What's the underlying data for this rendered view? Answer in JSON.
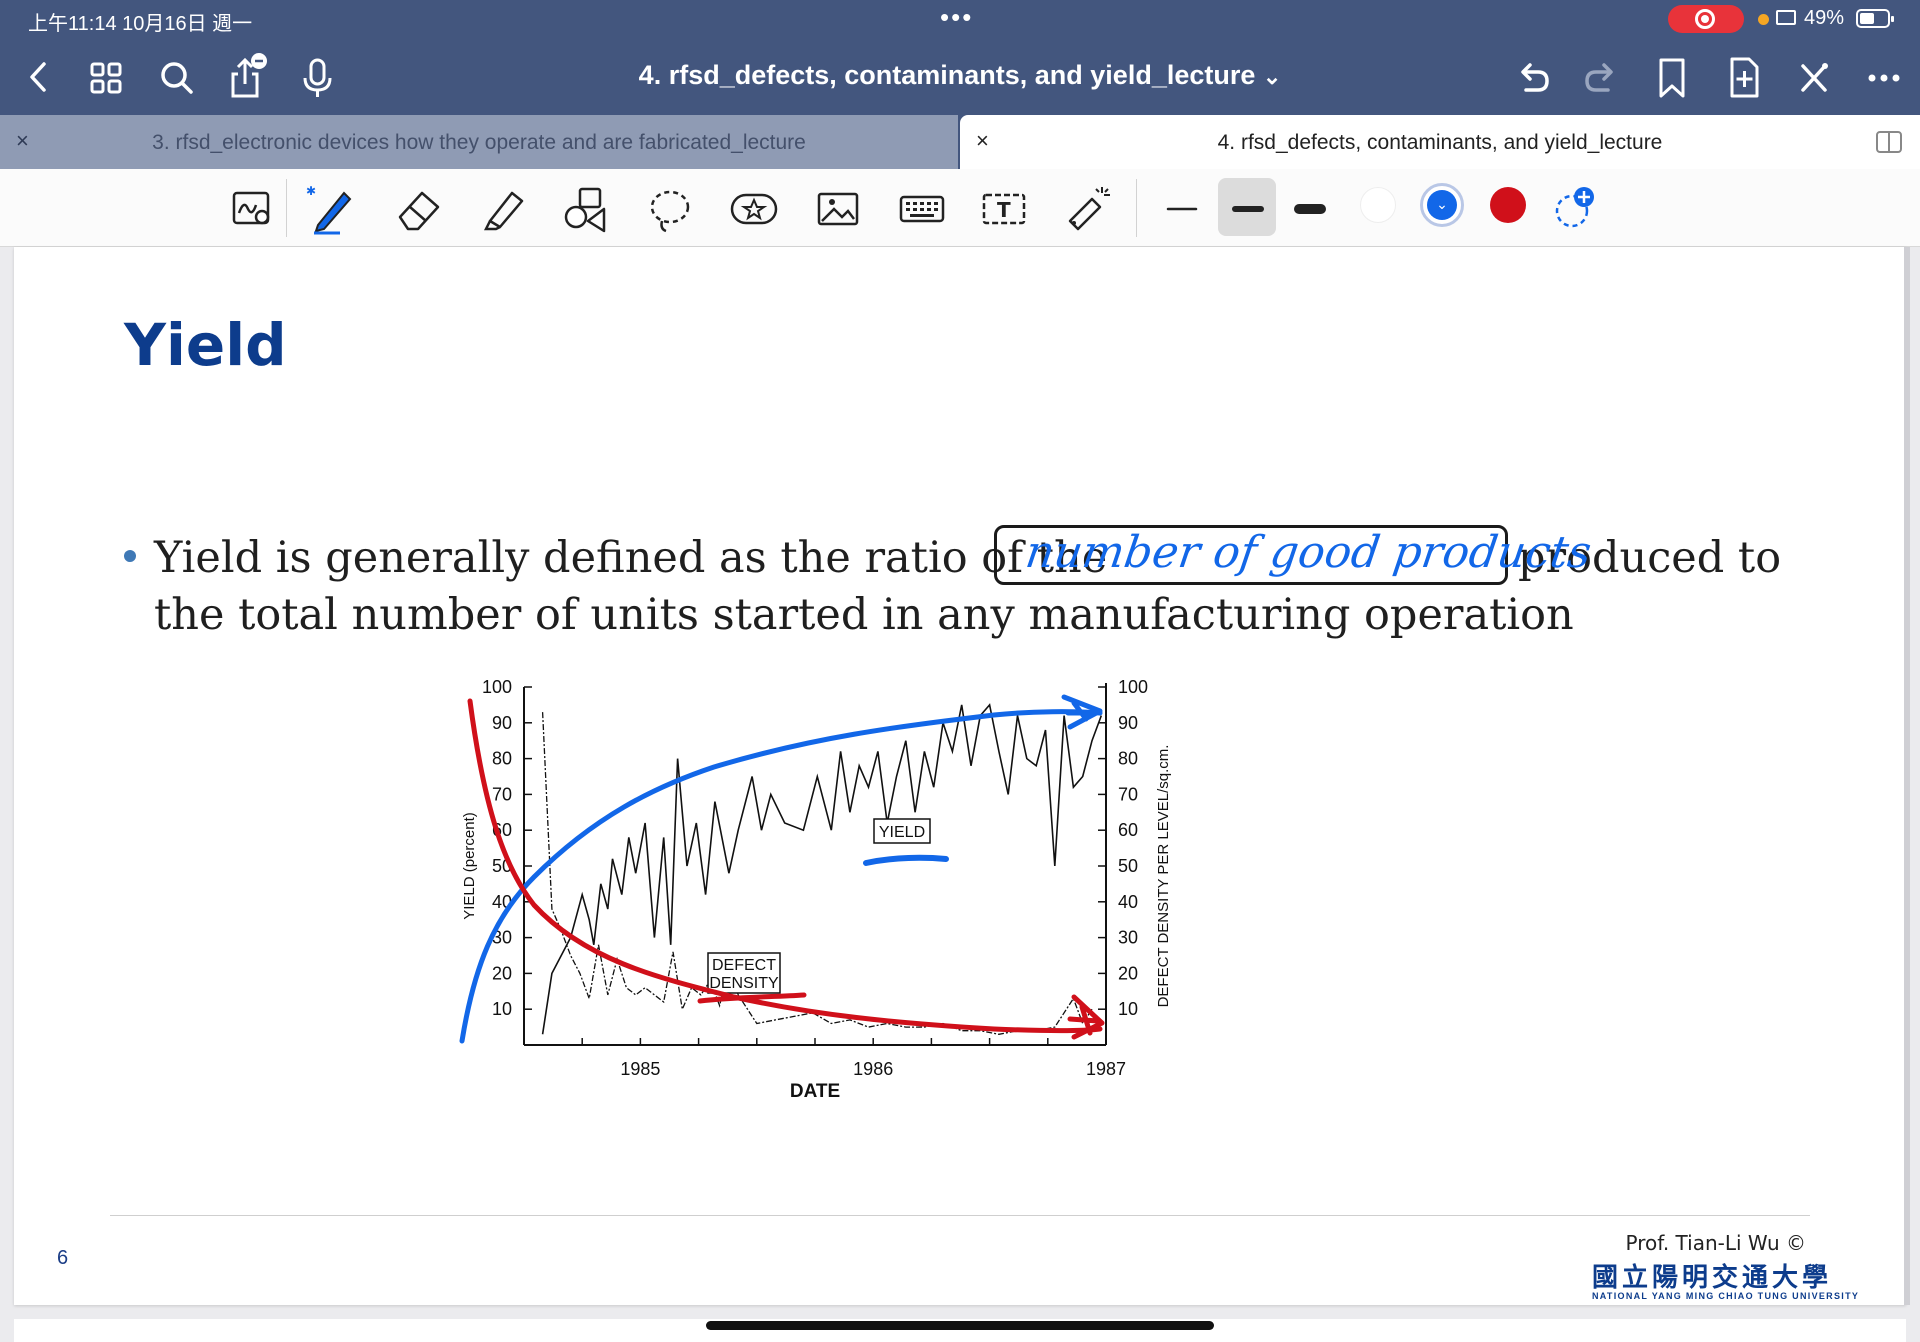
{
  "status_bar": {
    "time": "上午11:14   10月16日 週一",
    "dots": "•••",
    "battery": "49%"
  },
  "nav": {
    "title": "4. rfsd_defects, contaminants, and yield_lecture",
    "title_chevron": "⌄"
  },
  "tabs": [
    {
      "label": "3. rfsd_electronic devices how they operate and are fabricated_lecture",
      "close": "×"
    },
    {
      "label": "4. rfsd_defects, contaminants, and yield_lecture",
      "close": "×"
    }
  ],
  "tools": [
    "zoom-lasso",
    "pen",
    "eraser",
    "highlighter",
    "shapes",
    "lasso",
    "sticker",
    "image",
    "keyboard",
    "text",
    "laser-pointer"
  ],
  "colors": {
    "nav_bg": "#43567e",
    "accent_blue": "#1267e8",
    "ink_red": "#d0101a",
    "title_blue": "#0d3c8c"
  },
  "slide": {
    "title": "Yield",
    "bullet_line1_a": "Yield is generally defined as the ratio of the",
    "handwriting": "number of good products",
    "bullet_line1_b": "produced to",
    "bullet_line2": "the total number of units started in any manufacturing operation",
    "page_number": "6",
    "author": "Prof. Tian-Li Wu ©",
    "university_cn": "國立陽明交通大學",
    "university_en": "NATIONAL YANG MING CHIAO TUNG UNIVERSITY"
  },
  "chart_data": {
    "type": "line",
    "xlabel": "DATE",
    "ylabel_left": "YIELD (percent)",
    "ylabel_right": "DEFECT DENSITY PER LEVEL/sq.cm.",
    "x_ticks": [
      "1985",
      "1986",
      "1987"
    ],
    "y_ticks": [
      10,
      20,
      30,
      40,
      50,
      60,
      70,
      80,
      90,
      100
    ],
    "ylim": [
      0,
      100
    ],
    "xlim": [
      1984.5,
      1987.0
    ],
    "annotations": [
      "YIELD",
      "DEFECT DENSITY"
    ],
    "series": [
      {
        "name": "YIELD",
        "x": [
          1984.58,
          1984.62,
          1984.7,
          1984.75,
          1984.78,
          1984.8,
          1984.83,
          1984.86,
          1984.88,
          1984.92,
          1984.95,
          1984.98,
          1985.02,
          1985.06,
          1985.1,
          1985.13,
          1985.16,
          1985.2,
          1985.24,
          1985.28,
          1985.32,
          1985.38,
          1985.42,
          1985.48,
          1985.52,
          1985.56,
          1985.62,
          1985.7,
          1985.76,
          1985.82,
          1985.86,
          1985.9,
          1985.94,
          1985.98,
          1986.02,
          1986.06,
          1986.1,
          1986.14,
          1986.18,
          1986.22,
          1986.26,
          1986.3,
          1986.34,
          1986.38,
          1986.42,
          1986.46,
          1986.5,
          1986.54,
          1986.58,
          1986.62,
          1986.66,
          1986.7,
          1986.74,
          1986.78,
          1986.82,
          1986.86,
          1986.9,
          1986.94,
          1986.98
        ],
        "y": [
          3,
          20,
          30,
          42,
          35,
          28,
          45,
          38,
          52,
          42,
          58,
          48,
          62,
          30,
          58,
          28,
          80,
          50,
          62,
          42,
          68,
          48,
          60,
          75,
          60,
          70,
          62,
          60,
          75,
          60,
          82,
          65,
          78,
          72,
          82,
          62,
          75,
          85,
          65,
          82,
          72,
          90,
          82,
          95,
          78,
          92,
          95,
          82,
          70,
          92,
          80,
          78,
          88,
          50,
          92,
          72,
          75,
          85,
          92
        ]
      },
      {
        "name": "DEFECT DENSITY",
        "x": [
          1984.58,
          1984.62,
          1984.66,
          1984.7,
          1984.74,
          1984.78,
          1984.82,
          1984.86,
          1984.9,
          1984.94,
          1984.98,
          1985.02,
          1985.06,
          1985.1,
          1985.14,
          1985.18,
          1985.22,
          1985.26,
          1985.3,
          1985.34,
          1985.38,
          1985.42,
          1985.5,
          1985.58,
          1985.66,
          1985.74,
          1985.82,
          1985.9,
          1985.98,
          1986.06,
          1986.14,
          1986.22,
          1986.3,
          1986.38,
          1986.46,
          1986.54,
          1986.62,
          1986.7,
          1986.78,
          1986.86,
          1986.9,
          1986.94
        ],
        "y": [
          93,
          38,
          32,
          25,
          20,
          13,
          28,
          14,
          24,
          16,
          14,
          16,
          14,
          12,
          26,
          10,
          16,
          14,
          18,
          11,
          22,
          14,
          6,
          7,
          8,
          9,
          6,
          7,
          5,
          6,
          5,
          5,
          6,
          4,
          4,
          3,
          4,
          4,
          5,
          13,
          6,
          10
        ]
      }
    ]
  }
}
